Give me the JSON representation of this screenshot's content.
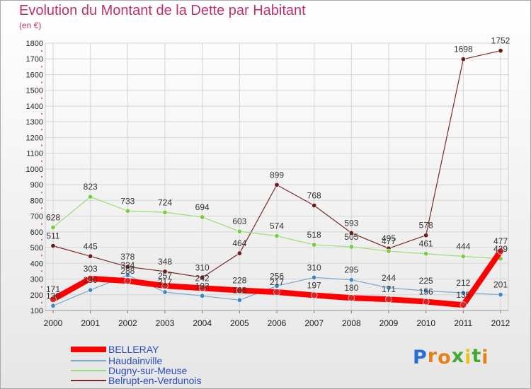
{
  "title": "Evolution du Montant de la Dette par Habitant",
  "unit": "(en €)",
  "logo": {
    "text": "Proxiti",
    "letter_colors": [
      "#2a6ad8",
      "#e8801a",
      "#e8801a",
      "#44a832",
      "#e8c21a",
      "#44a832",
      "#e8801a"
    ]
  },
  "chart_data": {
    "type": "line",
    "x": [
      "2000",
      "2001",
      "2002",
      "2003",
      "2004",
      "2005",
      "2006",
      "2007",
      "2008",
      "2009",
      "2010",
      "2011",
      "2012"
    ],
    "ylim": [
      100,
      1800
    ],
    "yticks": [
      "100",
      "200",
      "300",
      "400",
      "500",
      "600",
      "700",
      "800",
      "900",
      "1000",
      "1100",
      "1200",
      "1300",
      "1400",
      "1500",
      "1600",
      "1700",
      "1800"
    ],
    "grid": true,
    "legend": "bottom-left",
    "series": [
      {
        "name": "BELLERAY",
        "color": "#ff0000",
        "marker": "#dd2222",
        "width": 8,
        "values": [
          171,
          303,
          288,
          257,
          242,
          228,
          217,
          197,
          180,
          171,
          156,
          135,
          477
        ],
        "labels": [
          "171",
          "303",
          "288",
          "257",
          "242",
          "228",
          "217",
          "197",
          "180",
          "171",
          "156",
          "135",
          "477"
        ]
      },
      {
        "name": "Haudainville",
        "color": "#7aa7cc",
        "marker": "#3e86c4",
        "width": 1.2,
        "values": [
          130,
          230,
          324,
          217,
          193,
          166,
          256,
          310,
          295,
          244,
          225,
          212,
          201
        ],
        "labels": [
          "130",
          "230",
          "324",
          "217",
          "193",
          "166",
          "256",
          "310",
          "295",
          "244",
          "225",
          "212",
          "201"
        ]
      },
      {
        "name": "Dugny-sur-Meuse",
        "color": "#99dd77",
        "marker": "#77cc44",
        "width": 1.2,
        "values": [
          628,
          823,
          733,
          724,
          694,
          603,
          574,
          518,
          505,
          477,
          461,
          444,
          429
        ],
        "labels": [
          "628",
          "823",
          "733",
          "724",
          "694",
          "603",
          "574",
          "518",
          "505",
          "477",
          "461",
          "444",
          "429"
        ]
      },
      {
        "name": "Belrupt-en-Verdunois",
        "color": "#7a2a2a",
        "marker": "#6b1c1c",
        "width": 1.2,
        "values": [
          511,
          445,
          378,
          348,
          310,
          464,
          899,
          768,
          593,
          495,
          578,
          1698,
          1752
        ],
        "labels": [
          "511",
          "445",
          "378",
          "348",
          "310",
          "464",
          "899",
          "768",
          "593",
          "495",
          "578",
          "1698",
          "1752"
        ]
      }
    ]
  }
}
